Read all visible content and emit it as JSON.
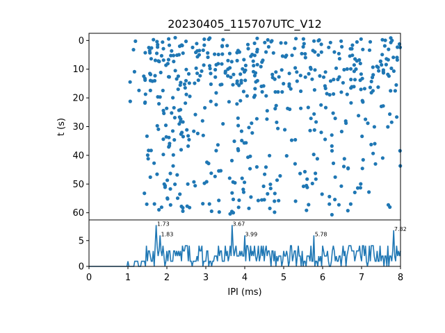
{
  "chart_data": [
    {
      "type": "scatter",
      "title": "20230405_115707UTC_V12",
      "xlabel": "",
      "ylabel": "t (s)",
      "xlim": [
        0,
        8
      ],
      "ylim": [
        62.5,
        -2.5
      ],
      "y_inverted": true,
      "yticks": [
        0,
        10,
        20,
        30,
        40,
        50,
        60
      ],
      "ytick_labels": [
        "0",
        "10",
        "20",
        "30",
        "40",
        "50",
        "60"
      ],
      "marker_color": "#1f77b4",
      "grid": false
    },
    {
      "type": "line",
      "xlabel": "IPI (ms)",
      "ylabel": "",
      "xlim": [
        0,
        8
      ],
      "ylim": [
        0,
        9
      ],
      "xticks": [
        0,
        1,
        2,
        3,
        4,
        5,
        6,
        7,
        8
      ],
      "xtick_labels": [
        "0",
        "1",
        "2",
        "3",
        "4",
        "5",
        "6",
        "7",
        "8"
      ],
      "yticks": [
        0,
        5
      ],
      "ytick_labels": [
        "0",
        "5"
      ],
      "line_color": "#1f77b4",
      "grid": false,
      "peak_annotations": [
        {
          "label": "1.73",
          "x": 1.73,
          "y": 8
        },
        {
          "label": "1.83",
          "x": 1.83,
          "y": 6
        },
        {
          "label": "3.67",
          "x": 3.67,
          "y": 8
        },
        {
          "label": "3.99",
          "x": 3.99,
          "y": 6
        },
        {
          "label": "5.78",
          "x": 5.78,
          "y": 6
        },
        {
          "label": "7.82",
          "x": 7.82,
          "y": 7
        }
      ]
    }
  ]
}
